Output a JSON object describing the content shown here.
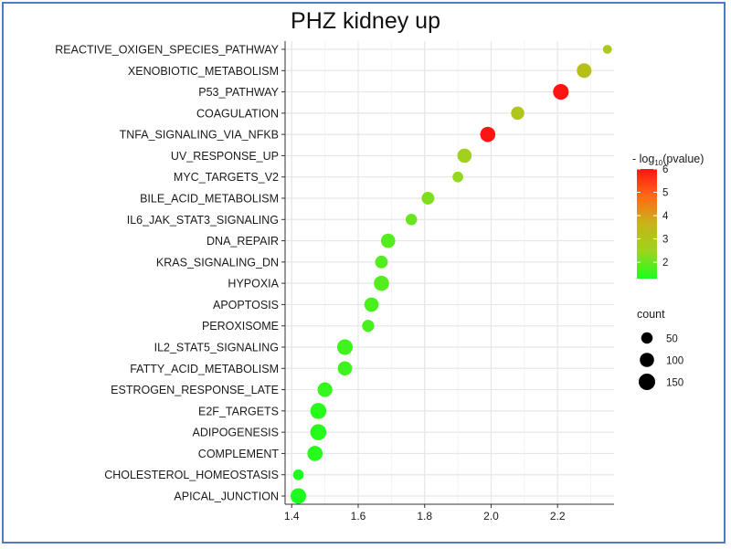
{
  "chart_data": {
    "type": "scatter",
    "title": "PHZ kidney up",
    "xlabel": "",
    "ylabel": "",
    "xlim": [
      1.38,
      2.37
    ],
    "xticks": [
      "1.4",
      "1.6",
      "1.8",
      "2.0",
      "2.2"
    ],
    "xtick_values": [
      1.4,
      1.6,
      1.8,
      2.0,
      2.2
    ],
    "grid": true,
    "categories": [
      "REACTIVE_OXIGEN_SPECIES_PATHWAY",
      "XENOBIOTIC_METABOLISM",
      "P53_PATHWAY",
      "COAGULATION",
      "TNFA_SIGNALING_VIA_NFKB",
      "UV_RESPONSE_UP",
      "MYC_TARGETS_V2",
      "BILE_ACID_METABOLISM",
      "IL6_JAK_STAT3_SIGNALING",
      "DNA_REPAIR",
      "KRAS_SIGNALING_DN",
      "HYPOXIA",
      "APOPTOSIS",
      "PEROXISOME",
      "IL2_STAT5_SIGNALING",
      "FATTY_ACID_METABOLISM",
      "ESTROGEN_RESPONSE_LATE",
      "E2F_TARGETS",
      "ADIPOGENESIS",
      "COMPLEMENT",
      "CHOLESTEROL_HOMEOSTASIS",
      "APICAL_JUNCTION"
    ],
    "x": [
      2.35,
      2.28,
      2.21,
      2.08,
      1.99,
      1.92,
      1.9,
      1.81,
      1.76,
      1.69,
      1.67,
      1.67,
      1.64,
      1.63,
      1.56,
      1.56,
      1.5,
      1.48,
      1.48,
      1.47,
      1.42,
      1.42
    ],
    "count": [
      20,
      110,
      130,
      80,
      120,
      100,
      40,
      70,
      50,
      100,
      70,
      120,
      100,
      60,
      130,
      100,
      110,
      140,
      140,
      120,
      40,
      130
    ],
    "neg_log10_pvalue": [
      2.9,
      3.2,
      6.0,
      3.0,
      6.0,
      2.6,
      2.4,
      2.2,
      2.0,
      1.8,
      1.8,
      1.8,
      1.7,
      1.7,
      1.6,
      1.6,
      1.5,
      1.4,
      1.4,
      1.4,
      1.3,
      1.3
    ],
    "color_legend": {
      "title": "- log",
      "title_sub": "10",
      "title_rest": "(pvalue)",
      "ticks": [
        "6",
        "5",
        "4",
        "3",
        "2"
      ],
      "tick_values": [
        6,
        5,
        4,
        3,
        2
      ],
      "range": [
        1.3,
        6.0
      ],
      "colors": [
        "#1cff1c",
        "#9cd41e",
        "#c8b419",
        "#ff6a14",
        "#ff1414"
      ]
    },
    "size_legend": {
      "title": "count",
      "values": [
        50,
        100,
        150
      ],
      "labels": [
        "50",
        "100",
        "150"
      ]
    },
    "legend_position": "right"
  }
}
